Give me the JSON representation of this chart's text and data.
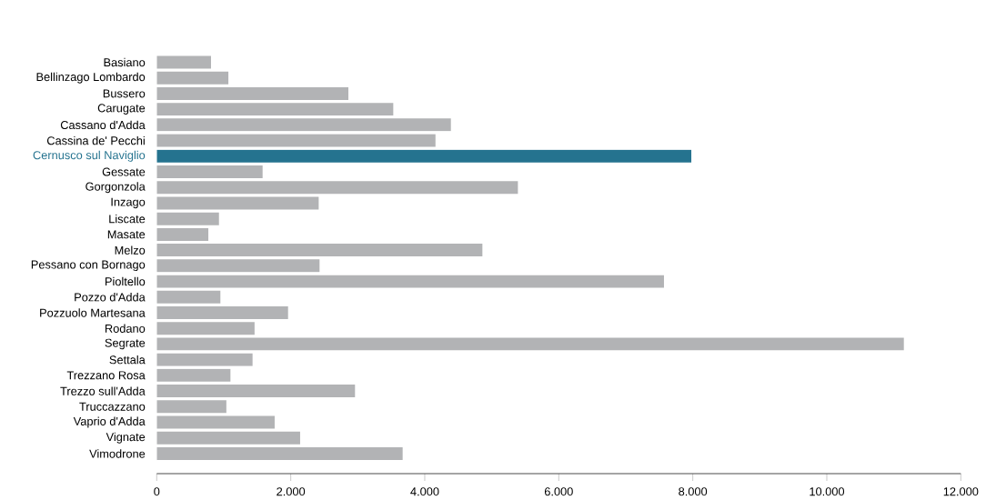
{
  "chart_data": {
    "type": "bar",
    "orientation": "horizontal",
    "categories": [
      "Basiano",
      "Bellinzago Lombardo",
      "Bussero",
      "Carugate",
      "Cassano d'Adda",
      "Cassina de' Pecchi",
      "Cernusco sul Naviglio",
      "Gessate",
      "Gorgonzola",
      "Inzago",
      "Liscate",
      "Masate",
      "Melzo",
      "Pessano con Bornago",
      "Pioltello",
      "Pozzo d'Adda",
      "Pozzuolo Martesana",
      "Rodano",
      "Segrate",
      "Settala",
      "Trezzano Rosa",
      "Trezzo sull'Adda",
      "Truccazzano",
      "Vaprio d'Adda",
      "Vignate",
      "Vimodrone"
    ],
    "values": [
      810,
      1070,
      2860,
      3530,
      4390,
      4160,
      7980,
      1580,
      5390,
      2420,
      930,
      770,
      4860,
      2430,
      7570,
      950,
      1960,
      1460,
      11150,
      1430,
      1100,
      2960,
      1040,
      1760,
      2140,
      3670
    ],
    "colors": [
      "#b2b3b5",
      "#b2b3b5",
      "#b2b3b5",
      "#b2b3b5",
      "#b2b3b5",
      "#b2b3b5",
      "#25738f",
      "#b2b3b5",
      "#b2b3b5",
      "#b2b3b5",
      "#b2b3b5",
      "#b2b3b5",
      "#b2b3b5",
      "#b2b3b5",
      "#b2b3b5",
      "#b2b3b5",
      "#b2b3b5",
      "#b2b3b5",
      "#b2b3b5",
      "#b2b3b5",
      "#b2b3b5",
      "#b2b3b5",
      "#b2b3b5",
      "#b2b3b5",
      "#b2b3b5",
      "#b2b3b5"
    ],
    "xlim": [
      0,
      12000
    ],
    "xticks": [
      0,
      {
        "value": 2000,
        "label": "2.000"
      },
      {
        "value": 4000,
        "label": "4.000"
      },
      {
        "value": 6000,
        "label": "6.000"
      },
      {
        "value": 8000,
        "label": "8.000"
      },
      {
        "value": 10000,
        "label": "10.000"
      },
      {
        "value": 12000,
        "label": "12.000"
      }
    ],
    "grid": false
  }
}
